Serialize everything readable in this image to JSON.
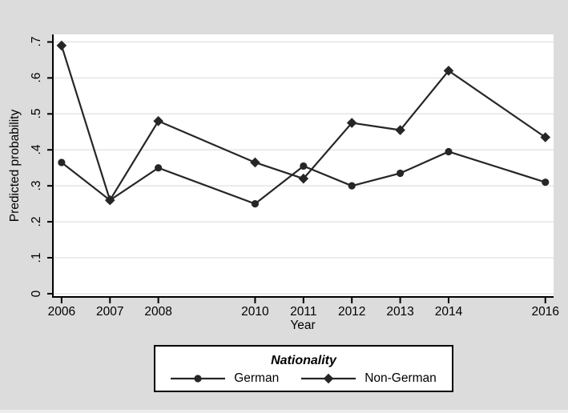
{
  "window": {
    "background": "#dcdcdc"
  },
  "chart_data": {
    "type": "line",
    "title": "",
    "xlabel": "Year",
    "ylabel": "Predicted probability",
    "x_ticks": [
      2006,
      2007,
      2008,
      2010,
      2011,
      2012,
      2013,
      2014,
      2016
    ],
    "x_tick_labels": [
      "2006",
      "2007",
      "2008",
      "2010",
      "2011",
      "2012",
      "2013",
      "2014",
      "2016"
    ],
    "xlim": [
      2005.82,
      2016.17
    ],
    "y_ticks": [
      0,
      0.1,
      0.2,
      0.3,
      0.4,
      0.5,
      0.6,
      0.7
    ],
    "y_tick_labels": [
      "0",
      ".1",
      ".2",
      ".3",
      ".4",
      ".5",
      ".6",
      ".7"
    ],
    "ylim": [
      -0.009,
      0.721
    ],
    "grid": "horizontal",
    "plot_background": "#ffffff",
    "grid_color": "#e5e5e5",
    "axis_color": "#000000",
    "series_color": "#262626",
    "legend": {
      "title": "Nationality",
      "position": "bottom-outside"
    },
    "series": [
      {
        "name": "German",
        "marker": "circle",
        "x": [
          2006,
          2007,
          2008,
          2010,
          2011,
          2012,
          2013,
          2014,
          2016
        ],
        "values": [
          0.365,
          0.26,
          0.35,
          0.25,
          0.355,
          0.3,
          0.335,
          0.395,
          0.31
        ]
      },
      {
        "name": "Non-German",
        "marker": "diamond",
        "x": [
          2006,
          2007,
          2008,
          2010,
          2011,
          2012,
          2013,
          2014,
          2016
        ],
        "values": [
          0.69,
          0.26,
          0.48,
          0.365,
          0.32,
          0.475,
          0.455,
          0.62,
          0.435
        ]
      }
    ]
  }
}
